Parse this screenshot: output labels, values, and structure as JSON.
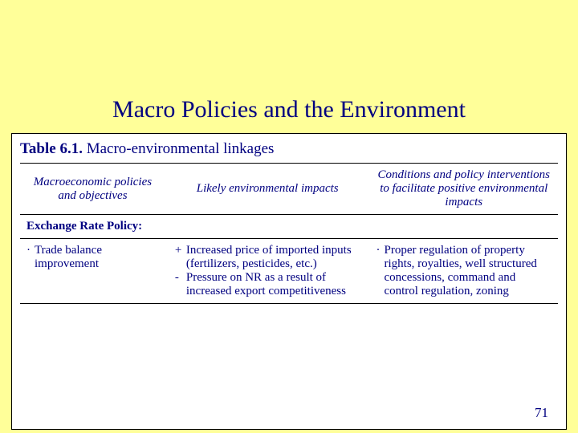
{
  "background_color": "#ffff99",
  "text_color": "#000080",
  "box_background": "#ffffff",
  "title": "Macro Policies and the Environment",
  "table": {
    "caption_bold": "Table 6.1.",
    "caption_rest": " Macro-environmental linkages",
    "columns": [
      "Macroeconomic policies and objectives",
      "Likely environmental impacts",
      "Conditions and policy interventions to facilitate positive environmental impacts"
    ],
    "section_heading": "Exchange Rate Policy:",
    "row": {
      "policy": "Trade balance improvement",
      "impact_plus": "Increased price of imported inputs (fertilizers, pesticides, etc.)",
      "impact_minus": "Pressure on NR as a result of increased export competitiveness",
      "conditions": "Proper regulation of property rights, royalties, well structured concessions, command and control regulation, zoning"
    }
  },
  "page_number": "71"
}
